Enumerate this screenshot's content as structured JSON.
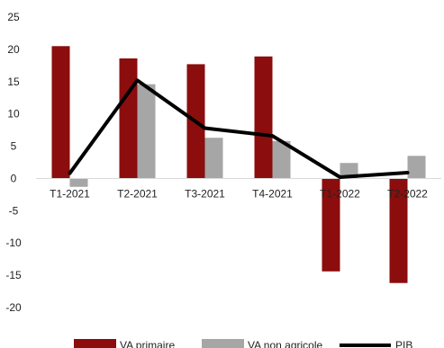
{
  "chart_data": {
    "type": "bar",
    "categories": [
      "T1-2021",
      "T2-2021",
      "T3-2021",
      "T4-2021",
      "T1-2022",
      "T2-2022"
    ],
    "series": [
      {
        "name": "VA primaire",
        "type": "bar",
        "color": "#8b0d0d",
        "values": [
          20.5,
          18.6,
          17.7,
          18.9,
          -14.4,
          -16.2
        ]
      },
      {
        "name": "VA non agricole",
        "type": "bar",
        "color": "#a6a6a6",
        "values": [
          -1.3,
          14.6,
          6.3,
          5.8,
          2.4,
          3.5
        ]
      },
      {
        "name": "PIB",
        "type": "line",
        "color": "#000000",
        "values": [
          0.8,
          15.2,
          7.8,
          6.6,
          0.2,
          0.9
        ]
      }
    ],
    "y_ticks": [
      "25",
      "20",
      "15",
      "10",
      "5",
      "0",
      "-5",
      "-10",
      "-15",
      "-20"
    ],
    "ylim": [
      -20,
      25
    ],
    "grid": false,
    "legend_position": "bottom"
  }
}
